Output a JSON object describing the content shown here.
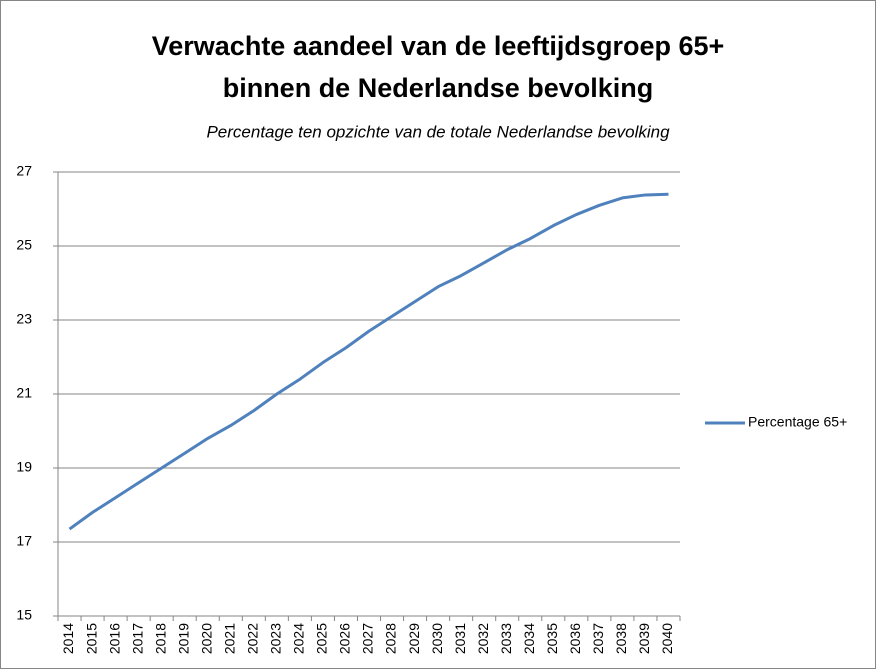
{
  "chart_data": {
    "type": "line",
    "title": [
      "Verwachte aandeel van de leeftijdsgroep 65+",
      "binnen de Nederlandse bevolking"
    ],
    "subtitle": "Percentage ten opzichte van de totale Nederlandse bevolking",
    "categories": [
      "2014",
      "2015",
      "2016",
      "2017",
      "2018",
      "2019",
      "2020",
      "2021",
      "2022",
      "2023",
      "2024",
      "2025",
      "2026",
      "2027",
      "2028",
      "2029",
      "2030",
      "2031",
      "2032",
      "2033",
      "2034",
      "2035",
      "2036",
      "2037",
      "2038",
      "2039",
      "2040"
    ],
    "series": [
      {
        "name": "Percentage 65+",
        "color": "#4f81bd",
        "values": [
          17.35,
          17.8,
          18.2,
          18.6,
          19.0,
          19.4,
          19.8,
          20.15,
          20.55,
          21.0,
          21.4,
          21.85,
          22.25,
          22.7,
          23.1,
          23.5,
          23.9,
          24.2,
          24.55,
          24.9,
          25.2,
          25.55,
          25.85,
          26.1,
          26.3,
          26.38,
          26.4
        ]
      }
    ],
    "ylim": [
      15,
      27
    ],
    "yticks": [
      15,
      17,
      19,
      21,
      23,
      25,
      27
    ],
    "grid": true,
    "legend": "right"
  }
}
